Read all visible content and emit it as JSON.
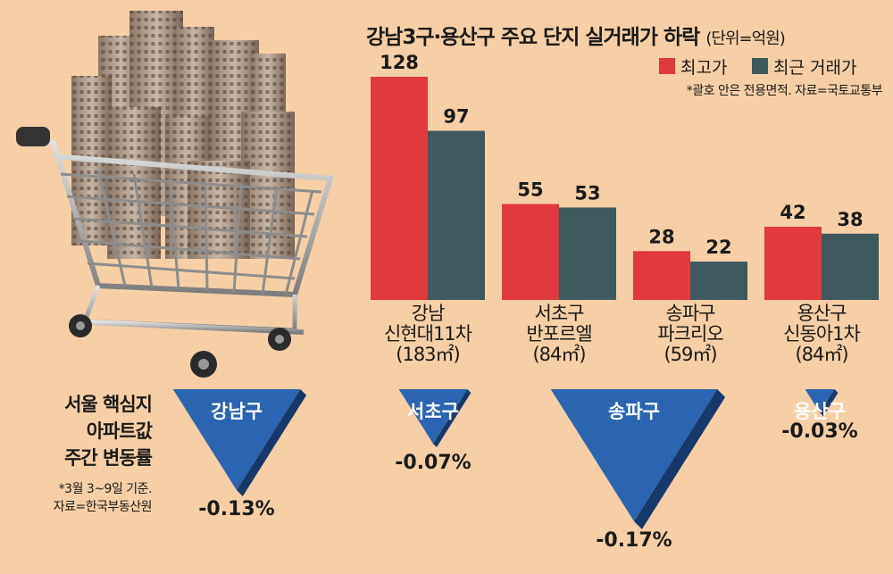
{
  "chart_data": [
    {
      "type": "bar",
      "title": "강남3구·용산구 주요 단지 실거래가 하락",
      "unit_note": "(단위=억원)",
      "categories": [
        {
          "lines": [
            "강남",
            "신현대11차",
            "(183㎡)"
          ]
        },
        {
          "lines": [
            "서초구",
            "반포르엘",
            "(84㎡)"
          ]
        },
        {
          "lines": [
            "송파구",
            "파크리오",
            "(59㎡)"
          ]
        },
        {
          "lines": [
            "용산구",
            "신동아1차",
            "(84㎡)"
          ]
        }
      ],
      "series": [
        {
          "name": "최고가",
          "color": "#e0393e",
          "values": [
            128,
            55,
            28,
            42
          ]
        },
        {
          "name": "최근 거래가",
          "color": "#3e5a5e",
          "values": [
            97,
            53,
            22,
            38
          ]
        }
      ],
      "ylim": [
        0,
        128
      ],
      "legend": "top-right",
      "grid": false,
      "note": "*괄호 안은 전용면적. 자료=국토교통부"
    },
    {
      "type": "bar",
      "title_lines": [
        "서울 핵심지",
        "아파트값",
        "주간 변동률"
      ],
      "categories": [
        "강남구",
        "서초구",
        "송파구",
        "용산구"
      ],
      "values": [
        -0.13,
        -0.07,
        -0.17,
        -0.03
      ],
      "value_labels": [
        "-0.13%",
        "-0.07%",
        "-0.17%",
        "-0.03%"
      ],
      "color": "#2b64b0",
      "note_lines": [
        "*3월 3~9일 기준.",
        "자료=한국부동산원"
      ]
    }
  ]
}
